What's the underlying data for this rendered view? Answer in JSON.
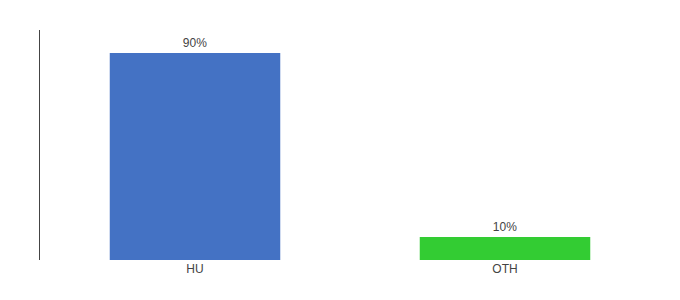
{
  "chart_data": {
    "type": "bar",
    "categories": [
      "HU",
      "OTH"
    ],
    "values": [
      90,
      10
    ],
    "value_labels": [
      "90%",
      "10%"
    ],
    "colors": [
      "#4472c4",
      "#33cc33"
    ],
    "ylim": [
      0,
      100
    ],
    "data_labels": true,
    "tick_labels": "x",
    "grid": false
  }
}
